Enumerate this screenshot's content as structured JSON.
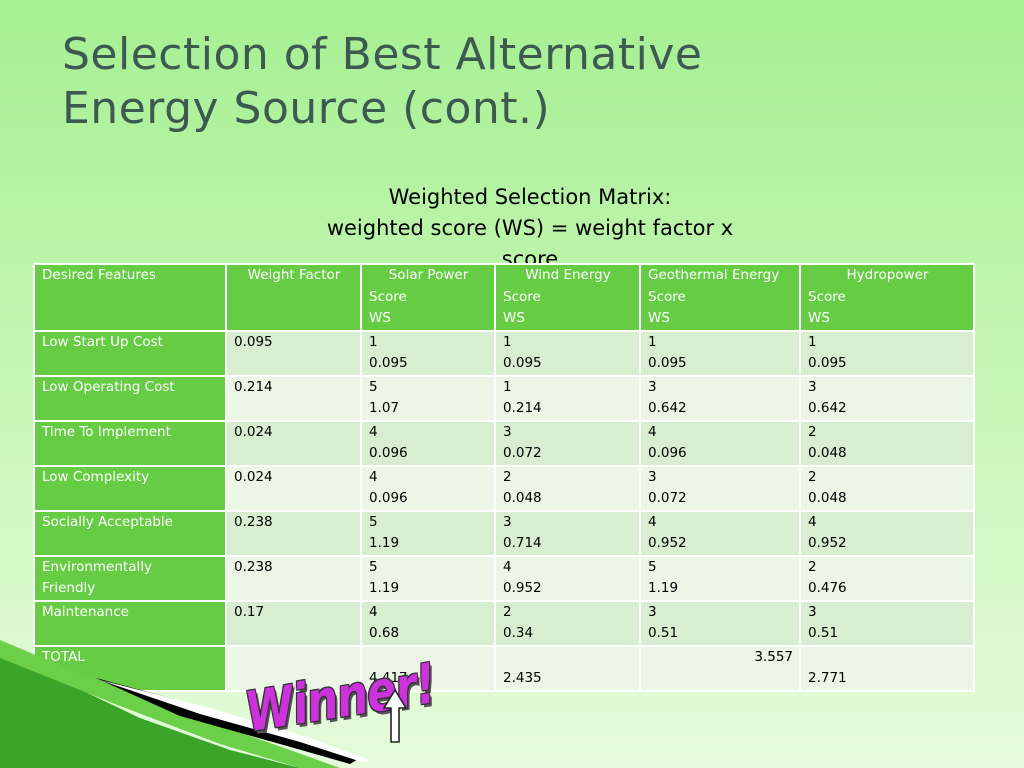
{
  "title": {
    "line1": "Selection of Best Alternative",
    "line2": "Energy Source (cont.)"
  },
  "subtitle": {
    "line1": "Weighted Selection Matrix:",
    "line2": "weighted score (WS) = weight factor  x",
    "line3": "score"
  },
  "table": {
    "headers": [
      {
        "lines": [
          "Desired Features"
        ]
      },
      {
        "lines": [
          "Weight Factor"
        ]
      },
      {
        "lines": [
          "Solar Power",
          "Score",
          "WS"
        ]
      },
      {
        "lines": [
          "Wind Energy",
          "Score",
          "WS"
        ]
      },
      {
        "lines": [
          "Geothermal Energy",
          "Score",
          "WS"
        ]
      },
      {
        "lines": [
          "Hydropower",
          "Score",
          "WS"
        ]
      }
    ],
    "rows": [
      {
        "feature": "Low Start Up Cost",
        "weight": "0.095",
        "scores": [
          [
            "1",
            "0.095"
          ],
          [
            "1",
            "0.095"
          ],
          [
            "1",
            "0.095"
          ],
          [
            "1",
            "0.095"
          ]
        ]
      },
      {
        "feature": "Low Operating Cost",
        "weight": "0.214",
        "scores": [
          [
            "5",
            "1.07"
          ],
          [
            "1",
            "0.214"
          ],
          [
            "3",
            "0.642"
          ],
          [
            "3",
            "0.642"
          ]
        ]
      },
      {
        "feature": "Time To Implement",
        "weight": "0.024",
        "scores": [
          [
            "4",
            "0.096"
          ],
          [
            "3",
            "0.072"
          ],
          [
            "4",
            "0.096"
          ],
          [
            "2",
            "0.048"
          ]
        ]
      },
      {
        "feature": "Low Complexity",
        "weight": "0.024",
        "scores": [
          [
            "4",
            "0.096"
          ],
          [
            "2",
            "0.048"
          ],
          [
            "3",
            "0.072"
          ],
          [
            "2",
            "0.048"
          ]
        ]
      },
      {
        "feature": "Socially Acceptable",
        "weight": "0.238",
        "scores": [
          [
            "5",
            "1.19"
          ],
          [
            "3",
            "0.714"
          ],
          [
            "4",
            "0.952"
          ],
          [
            "4",
            "0.952"
          ]
        ]
      },
      {
        "feature_lines": [
          "Environmentally",
          "Friendly"
        ],
        "weight": "0.238",
        "scores": [
          [
            "5",
            "1.19"
          ],
          [
            "4",
            "0.952"
          ],
          [
            "5",
            "1.19"
          ],
          [
            "2",
            "0.476"
          ]
        ]
      },
      {
        "feature": "Maintenance",
        "weight": "0.17",
        "scores": [
          [
            "4",
            "0.68"
          ],
          [
            "2",
            "0.34"
          ],
          [
            "3",
            "0.51"
          ],
          [
            "3",
            "0.51"
          ]
        ]
      }
    ],
    "total": {
      "label": "TOTAL",
      "solar": "4.417",
      "wind": "2.435",
      "geothermal": "3.557",
      "hydro": "2.771"
    }
  },
  "annotation": {
    "winner": "Winner!",
    "arrow_icon": "up-arrow-icon"
  },
  "colors": {
    "header_green": "#66cc44",
    "row_dark": "#d7eed0",
    "row_light": "#ebf6e6",
    "title": "#3c5a52",
    "winner": "#cc33dd"
  }
}
